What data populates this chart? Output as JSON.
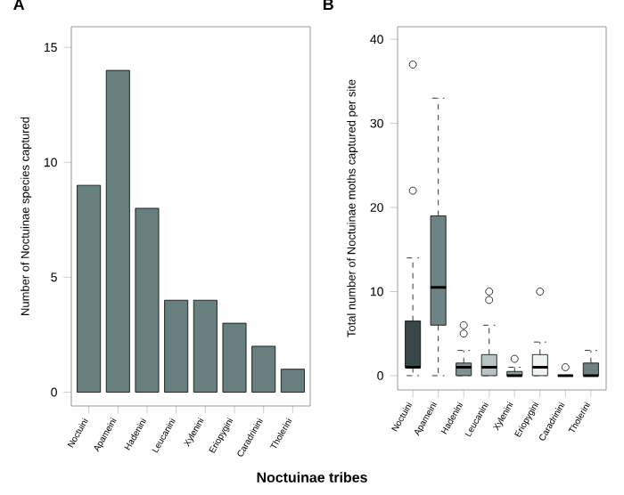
{
  "chart_data": [
    {
      "type": "bar",
      "title": "A",
      "xlabel": "Noctuinae tribes",
      "ylabel": "Number of Noctuinae species captured",
      "categories": [
        "Noctuini",
        "Apameini",
        "Hadenini",
        "Leucanini",
        "Xylenini",
        "Eriopygini",
        "Caradrinini",
        "Tholerini"
      ],
      "values": [
        9,
        14,
        8,
        4,
        4,
        3,
        2,
        1
      ],
      "color": "#687f7f",
      "ylim": [
        -0.6,
        15.9
      ],
      "yticks": [
        0,
        5,
        10,
        15
      ]
    },
    {
      "type": "box",
      "title": "B",
      "ylabel": "Total number of Noctuinae moths captured per site",
      "categories": [
        "Noctuini",
        "Apameini",
        "Hadenini",
        "Leucanini",
        "Xylenini",
        "Eriopygini",
        "Caradrinini",
        "Tholerini"
      ],
      "boxes": [
        {
          "low": 0,
          "q1": 1,
          "median": 1,
          "q3": 6.5,
          "high": 14,
          "outliers": [
            22,
            37
          ]
        },
        {
          "low": 0,
          "q1": 6,
          "median": 10.5,
          "q3": 19,
          "high": 33
        },
        {
          "low": 0,
          "q1": 0,
          "median": 1,
          "q3": 1.5,
          "high": 3,
          "outliers": [
            5,
            6
          ]
        },
        {
          "low": 0,
          "q1": 0,
          "median": 1,
          "q3": 2.5,
          "high": 6,
          "outliers": [
            9,
            10
          ]
        },
        {
          "low": 0,
          "q1": 0,
          "median": 0,
          "q3": 0.5,
          "high": 1,
          "outliers": [
            2
          ]
        },
        {
          "low": 0,
          "q1": 0,
          "median": 1,
          "q3": 2.5,
          "high": 4,
          "outliers": [
            10
          ]
        },
        {
          "low": 0,
          "q1": 0,
          "median": 0,
          "q3": 0,
          "high": 0,
          "outliers": [
            1
          ]
        },
        {
          "low": 0,
          "q1": 0,
          "median": 0,
          "q3": 1.5,
          "high": 3
        }
      ],
      "colors": [
        "#3a4545",
        "#6e8383",
        "#7f9090",
        "#b8c4c4",
        "#8a9a9a",
        "#eef2f2",
        "#000000",
        "#6e8080"
      ],
      "ylim": [
        -1.7,
        41.5
      ],
      "yticks": [
        0,
        10,
        20,
        30,
        40
      ]
    }
  ]
}
